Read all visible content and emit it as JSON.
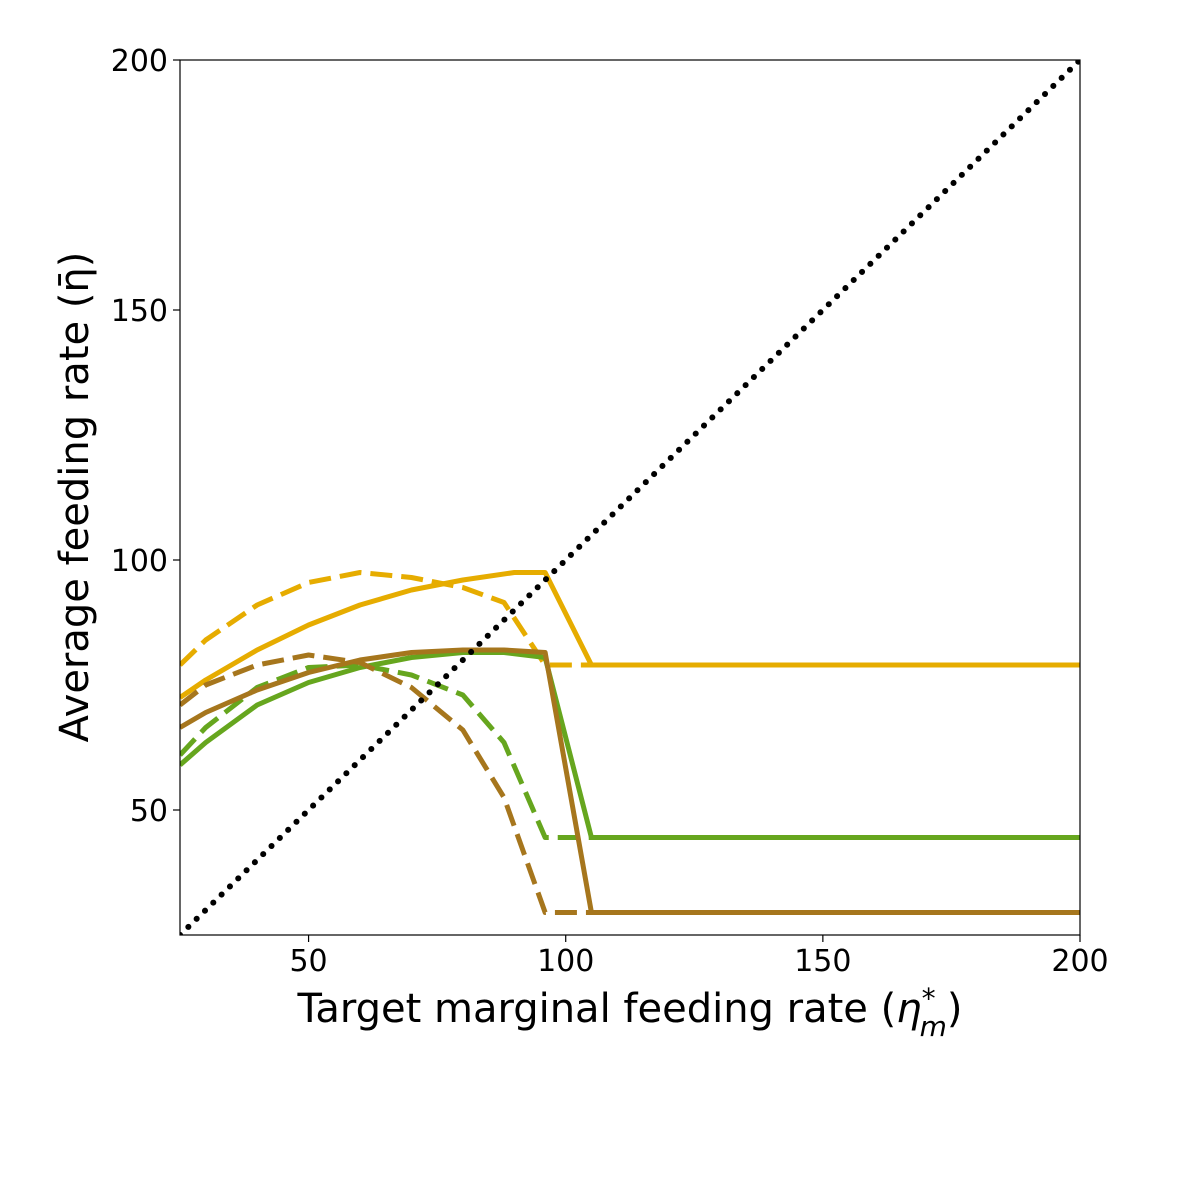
{
  "chart_data": {
    "type": "line",
    "title": "",
    "xlabel": "Target marginal feeding rate (η*m)",
    "xlabel_parts": {
      "main": "Target marginal feeding rate (",
      "sym": "η",
      "sup": "*",
      "sub": "m",
      "close": ")"
    },
    "ylabel": "Average feeding rate (η̄)",
    "xlim": [
      25,
      200
    ],
    "ylim": [
      25,
      200
    ],
    "xticks": [
      50,
      100,
      150,
      200
    ],
    "yticks": [
      50,
      100,
      150,
      200
    ],
    "grid": false,
    "legend": "none",
    "series": [
      {
        "color": "#E6AC00",
        "dash": "solid",
        "x": [
          25,
          30,
          40,
          50,
          60,
          70,
          80,
          90,
          96,
          105,
          200
        ],
        "y": [
          72.5,
          76,
          82,
          87,
          91,
          94,
          96,
          97.5,
          97.5,
          79,
          79
        ]
      },
      {
        "color": "#E6AC00",
        "dash": "dashed",
        "x": [
          25,
          30,
          40,
          50,
          60,
          70,
          80,
          88,
          96,
          105,
          200
        ],
        "y": [
          79,
          84,
          91,
          95.5,
          97.5,
          96.5,
          94.5,
          91.5,
          79,
          79,
          79
        ]
      },
      {
        "color": "#66A61E",
        "dash": "solid",
        "x": [
          25,
          30,
          40,
          50,
          60,
          70,
          80,
          88,
          96,
          105,
          200
        ],
        "y": [
          59,
          63.5,
          71,
          75.5,
          78.5,
          80.5,
          81.5,
          81.5,
          80.5,
          44.5,
          44.5
        ]
      },
      {
        "color": "#66A61E",
        "dash": "dashed",
        "x": [
          25,
          30,
          40,
          50,
          60,
          70,
          80,
          88,
          96,
          105,
          200
        ],
        "y": [
          61,
          66.5,
          74.5,
          78.5,
          79,
          77,
          73,
          63.5,
          44.5,
          44.5,
          44.5
        ]
      },
      {
        "color": "#A6761D",
        "dash": "solid",
        "x": [
          25,
          30,
          40,
          50,
          60,
          70,
          80,
          88,
          96,
          105,
          200
        ],
        "y": [
          66.5,
          69.5,
          74,
          77.5,
          80,
          81.5,
          82,
          82,
          81.5,
          29.5,
          29.5
        ]
      },
      {
        "color": "#A6761D",
        "dash": "dashed",
        "x": [
          25,
          30,
          40,
          50,
          60,
          70,
          80,
          88,
          96,
          105,
          200
        ],
        "y": [
          71,
          75,
          79,
          81,
          79.5,
          74.5,
          66,
          52.5,
          29.5,
          29.5,
          29.5
        ]
      },
      {
        "color": "#000000",
        "dash": "dotted",
        "x": [
          25,
          200
        ],
        "y": [
          25,
          200
        ]
      }
    ]
  }
}
